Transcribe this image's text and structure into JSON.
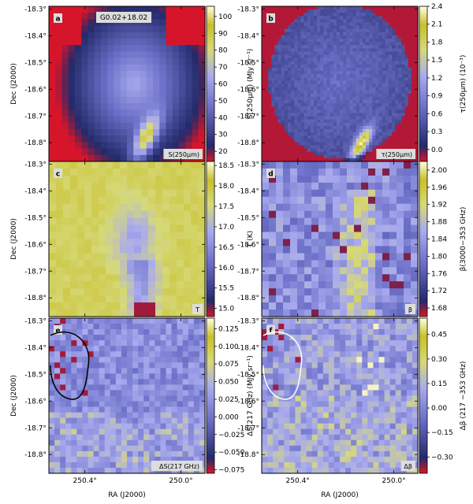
{
  "chart_data": {
    "type": "heatmap",
    "source_name": "G0.02+18.02",
    "axes": {
      "xlabel": "RA (J2000)",
      "ylabel": "Dec (J2000)",
      "x_ticks": [
        "250.4°",
        "250.0°"
      ],
      "x_tick_values": [
        250.4,
        250.0
      ],
      "y_ticks": [
        "-18.3°",
        "-18.4°",
        "-18.5°",
        "-18.6°",
        "-18.7°",
        "-18.8°"
      ],
      "y_tick_values": [
        -18.3,
        -18.4,
        -18.5,
        -18.6,
        -18.7,
        -18.8
      ],
      "xlim": [
        250.55,
        249.9
      ],
      "ylim": [
        -18.87,
        -18.29
      ]
    },
    "panels": [
      {
        "id": "a",
        "letter": "a",
        "tag": "S(250μm)",
        "colorbar_label": "S(250μm) (MJy sr⁻¹)",
        "colorbar_ticks": [
          "100",
          "90",
          "80",
          "70",
          "60",
          "50",
          "40",
          "30",
          "20"
        ],
        "colorbar_tick_values": [
          100,
          90,
          80,
          70,
          60,
          50,
          40,
          30,
          20
        ],
        "vmin": 14,
        "vmax": 106
      },
      {
        "id": "b",
        "letter": "b",
        "tag": "τ(250μm)",
        "colorbar_label": "τ(250μm) (10⁻³)",
        "colorbar_ticks": [
          "2.4",
          "2.1",
          "1.8",
          "1.5",
          "1.2",
          "0.9",
          "0.6",
          "0.3",
          "0.0"
        ],
        "colorbar_tick_values": [
          2.4,
          2.1,
          1.8,
          1.5,
          1.2,
          0.9,
          0.6,
          0.3,
          0.0
        ],
        "vmin": -0.2,
        "vmax": 2.4
      },
      {
        "id": "c",
        "letter": "c",
        "tag": "T",
        "colorbar_label": "T (K)",
        "colorbar_ticks": [
          "18.5",
          "18.0",
          "17.5",
          "17.0",
          "16.5",
          "16.0",
          "15.5",
          "15.0"
        ],
        "colorbar_tick_values": [
          18.5,
          18.0,
          17.5,
          17.0,
          16.5,
          16.0,
          15.5,
          15.0
        ],
        "vmin": 14.8,
        "vmax": 18.6
      },
      {
        "id": "d",
        "letter": "d",
        "tag": "β",
        "colorbar_label": "β(3000−353 GHz)",
        "colorbar_ticks": [
          "2.00",
          "1.96",
          "1.92",
          "1.88",
          "1.84",
          "1.80",
          "1.76",
          "1.72",
          "1.68"
        ],
        "colorbar_tick_values": [
          2.0,
          1.96,
          1.92,
          1.88,
          1.84,
          1.8,
          1.76,
          1.72,
          1.68
        ],
        "vmin": 1.66,
        "vmax": 2.02
      },
      {
        "id": "e",
        "letter": "e",
        "tag": "ΔS(217 GHz)",
        "colorbar_label": "ΔS(217 GHz) (MJy sr⁻¹)",
        "colorbar_ticks": [
          "0.125",
          "0.100",
          "0.075",
          "0.050",
          "0.025",
          "0.000",
          "−0.025",
          "−0.050",
          "−0.075"
        ],
        "colorbar_tick_values": [
          0.125,
          0.1,
          0.075,
          0.05,
          0.025,
          0.0,
          -0.025,
          -0.05,
          -0.075
        ],
        "vmin": -0.08,
        "vmax": 0.14
      },
      {
        "id": "f",
        "letter": "f",
        "tag": "Δβ",
        "colorbar_label": "Δβ (217 −353 GHz)",
        "colorbar_ticks": [
          "0.45",
          "0.30",
          "0.15",
          "0.00",
          "−0.15",
          "−0.30"
        ],
        "colorbar_tick_values": [
          0.45,
          0.3,
          0.15,
          0.0,
          -0.15,
          -0.3
        ],
        "vmin": -0.4,
        "vmax": 0.55
      }
    ],
    "colormap": [
      "#d7152a",
      "#232a6a",
      "#6c70c8",
      "#a9abee",
      "#d6d97a",
      "#c8c02b",
      "#ffffe0"
    ]
  }
}
